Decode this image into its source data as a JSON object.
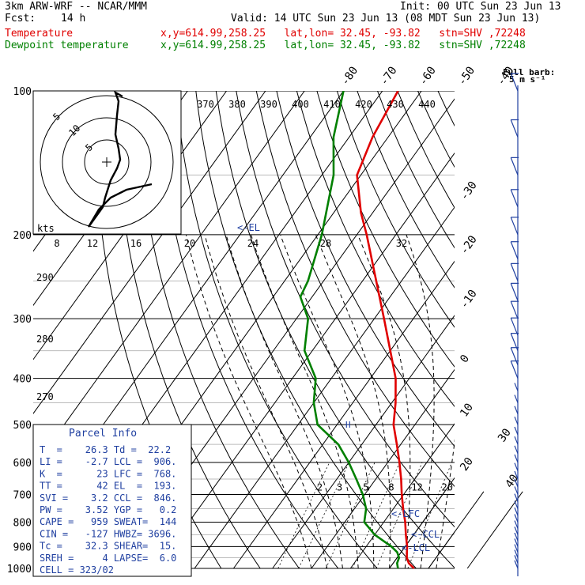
{
  "header": {
    "title": "3km ARW-WRF -- NCAR/MMM",
    "init": "Init: 00 UTC Sun 23 Jun 13",
    "fcst_label": "Fcst:",
    "fcst_value": "14 h",
    "valid": "Valid: 14 UTC Sun 23 Jun 13 (08 MDT Sun 23 Jun 13)",
    "temp_label": "Temperature",
    "dew_label": "Dewpoint temperature",
    "loc_line": "x,y=614.99,258.25   lat,lon= 32.45, -93.82   stn=SHV ,72248"
  },
  "colors": {
    "temperature": "#e00000",
    "dewpoint": "#008000",
    "parcel_box": "#1f3fa0",
    "wind": "#1f3fa0"
  },
  "chart_data": {
    "type": "skew-T log-P sounding",
    "y_axis": {
      "scale": "log",
      "unit": "hPa",
      "ticks": [
        100,
        200,
        300,
        400,
        500,
        600,
        700,
        800,
        900,
        1000
      ]
    },
    "temperature_ticks": [
      -80,
      -70,
      -60,
      -50,
      -40,
      -30,
      -20,
      -10,
      0,
      10,
      20,
      30,
      40
    ],
    "theta_labels": [
      370,
      380,
      390,
      400,
      410,
      420,
      430,
      440
    ],
    "theta_left_labels": [
      290,
      280,
      270
    ],
    "mixing_ratio_labels": [
      2,
      3,
      5,
      8,
      12,
      20
    ],
    "hodograph": {
      "ring_labels": [
        "5",
        "10",
        "5"
      ],
      "kts_label": "kts",
      "speed_labels": [
        "8",
        "12",
        "16",
        "20",
        "24",
        "28",
        "32"
      ]
    },
    "level_labels": {
      "el": "<-EL",
      "lfc": "<-LFC",
      "ccl": "<-CCL",
      "lcl": "<-LCL"
    },
    "series": [
      {
        "name": "Temperature",
        "points": [
          [
            1000,
            26.3
          ],
          [
            975,
            24.0
          ],
          [
            950,
            22.5
          ],
          [
            925,
            21.5
          ],
          [
            900,
            20.5
          ],
          [
            850,
            18.0
          ],
          [
            800,
            15.5
          ],
          [
            750,
            12.5
          ],
          [
            700,
            9.5
          ],
          [
            650,
            6.5
          ],
          [
            600,
            3.0
          ],
          [
            550,
            -1.0
          ],
          [
            500,
            -5.5
          ],
          [
            450,
            -9.0
          ],
          [
            400,
            -13.5
          ],
          [
            350,
            -20.0
          ],
          [
            300,
            -27.5
          ],
          [
            250,
            -36.5
          ],
          [
            200,
            -47.5
          ],
          [
            180,
            -53.0
          ],
          [
            150,
            -61.0
          ],
          [
            125,
            -64.0
          ],
          [
            100,
            -66.0
          ]
        ]
      },
      {
        "name": "Dewpoint temperature",
        "points": [
          [
            1000,
            22.2
          ],
          [
            975,
            21.0
          ],
          [
            950,
            20.5
          ],
          [
            925,
            19.0
          ],
          [
            900,
            16.5
          ],
          [
            850,
            10.0
          ],
          [
            800,
            5.0
          ],
          [
            750,
            3.0
          ],
          [
            700,
            -0.5
          ],
          [
            650,
            -5.0
          ],
          [
            600,
            -10.0
          ],
          [
            550,
            -16.0
          ],
          [
            500,
            -25.0
          ],
          [
            450,
            -30.0
          ],
          [
            400,
            -34.0
          ],
          [
            350,
            -42.0
          ],
          [
            300,
            -47.0
          ],
          [
            270,
            -53.0
          ],
          [
            250,
            -54.0
          ],
          [
            200,
            -59.0
          ],
          [
            150,
            -67.0
          ],
          [
            125,
            -74.0
          ],
          [
            100,
            -80.0
          ]
        ]
      }
    ],
    "winds_label_top": "Full barb:",
    "winds_label_sub": "5 m s⁻¹"
  },
  "parcel_info": {
    "title": "Parcel Info",
    "rows": [
      "T  =    26.3 Td =  22.2",
      "LI =    -2.7 LCL =  906.",
      "K  =      23 LFC =  768.",
      "TT =      42 EL  =  193.",
      "SVI =    3.2 CCL =  846.",
      "PW =    3.52 YGP =   0.2",
      "CAPE =   959 SWEAT=  144",
      "CIN =   -127 HWBZ= 3696.",
      "Tc =    32.3 SHEAR=  15.",
      "SREH =     4 LAPSE=  6.0",
      "CELL = 323/02"
    ]
  }
}
